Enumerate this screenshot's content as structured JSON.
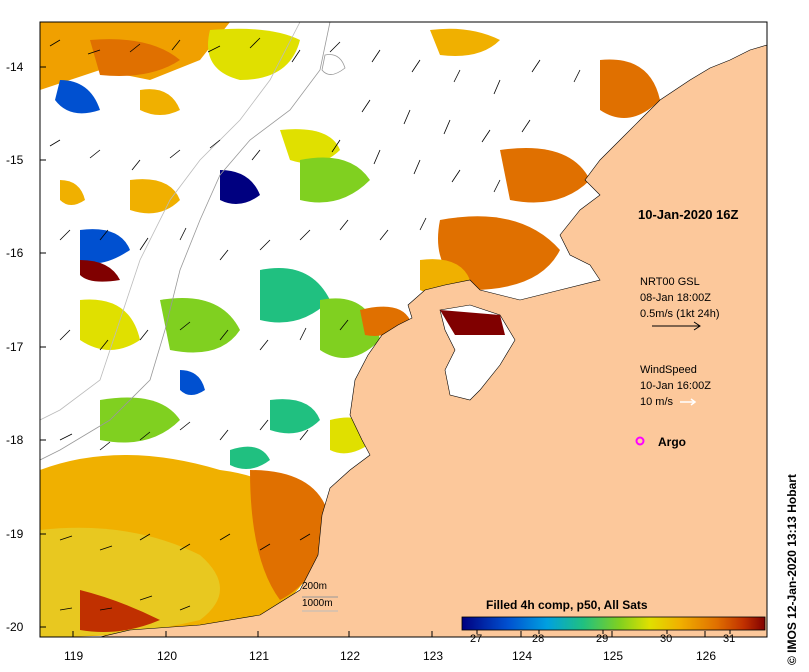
{
  "map": {
    "title": "10-Jan-2020 16Z",
    "credit": "© IMOS 12-Jan-2020 13:13 Hobart",
    "y_axis": {
      "labels": [
        "-14",
        "-15",
        "-16",
        "-17",
        "-18",
        "-19",
        "-20"
      ]
    },
    "x_axis": {
      "labels": [
        "119",
        "120",
        "121",
        "122",
        "123",
        "124",
        "125",
        "126"
      ]
    },
    "current_legend": {
      "product": "NRT00 GSL",
      "date": "08-Jan 18:00Z",
      "scale": "0.5m/s (1kt 24h)"
    },
    "wind_legend": {
      "title": "WindSpeed",
      "date": "10-Jan 16:00Z",
      "scale": "10 m/s"
    },
    "argo_label": "Argo",
    "contours": {
      "label1": "200m",
      "label2": "1000m"
    },
    "colorbar": {
      "title": "Filled 4h comp, p50, All Sats",
      "ticks": [
        "27",
        "28",
        "29",
        "30",
        "31"
      ],
      "colors": [
        "#000080",
        "#0050d0",
        "#00a0e0",
        "#20c080",
        "#80d020",
        "#e0e000",
        "#f0b000",
        "#e07000",
        "#c03000",
        "#800000"
      ]
    },
    "colors": {
      "land": "#fcc89b",
      "argo": "#ff00ff"
    }
  }
}
